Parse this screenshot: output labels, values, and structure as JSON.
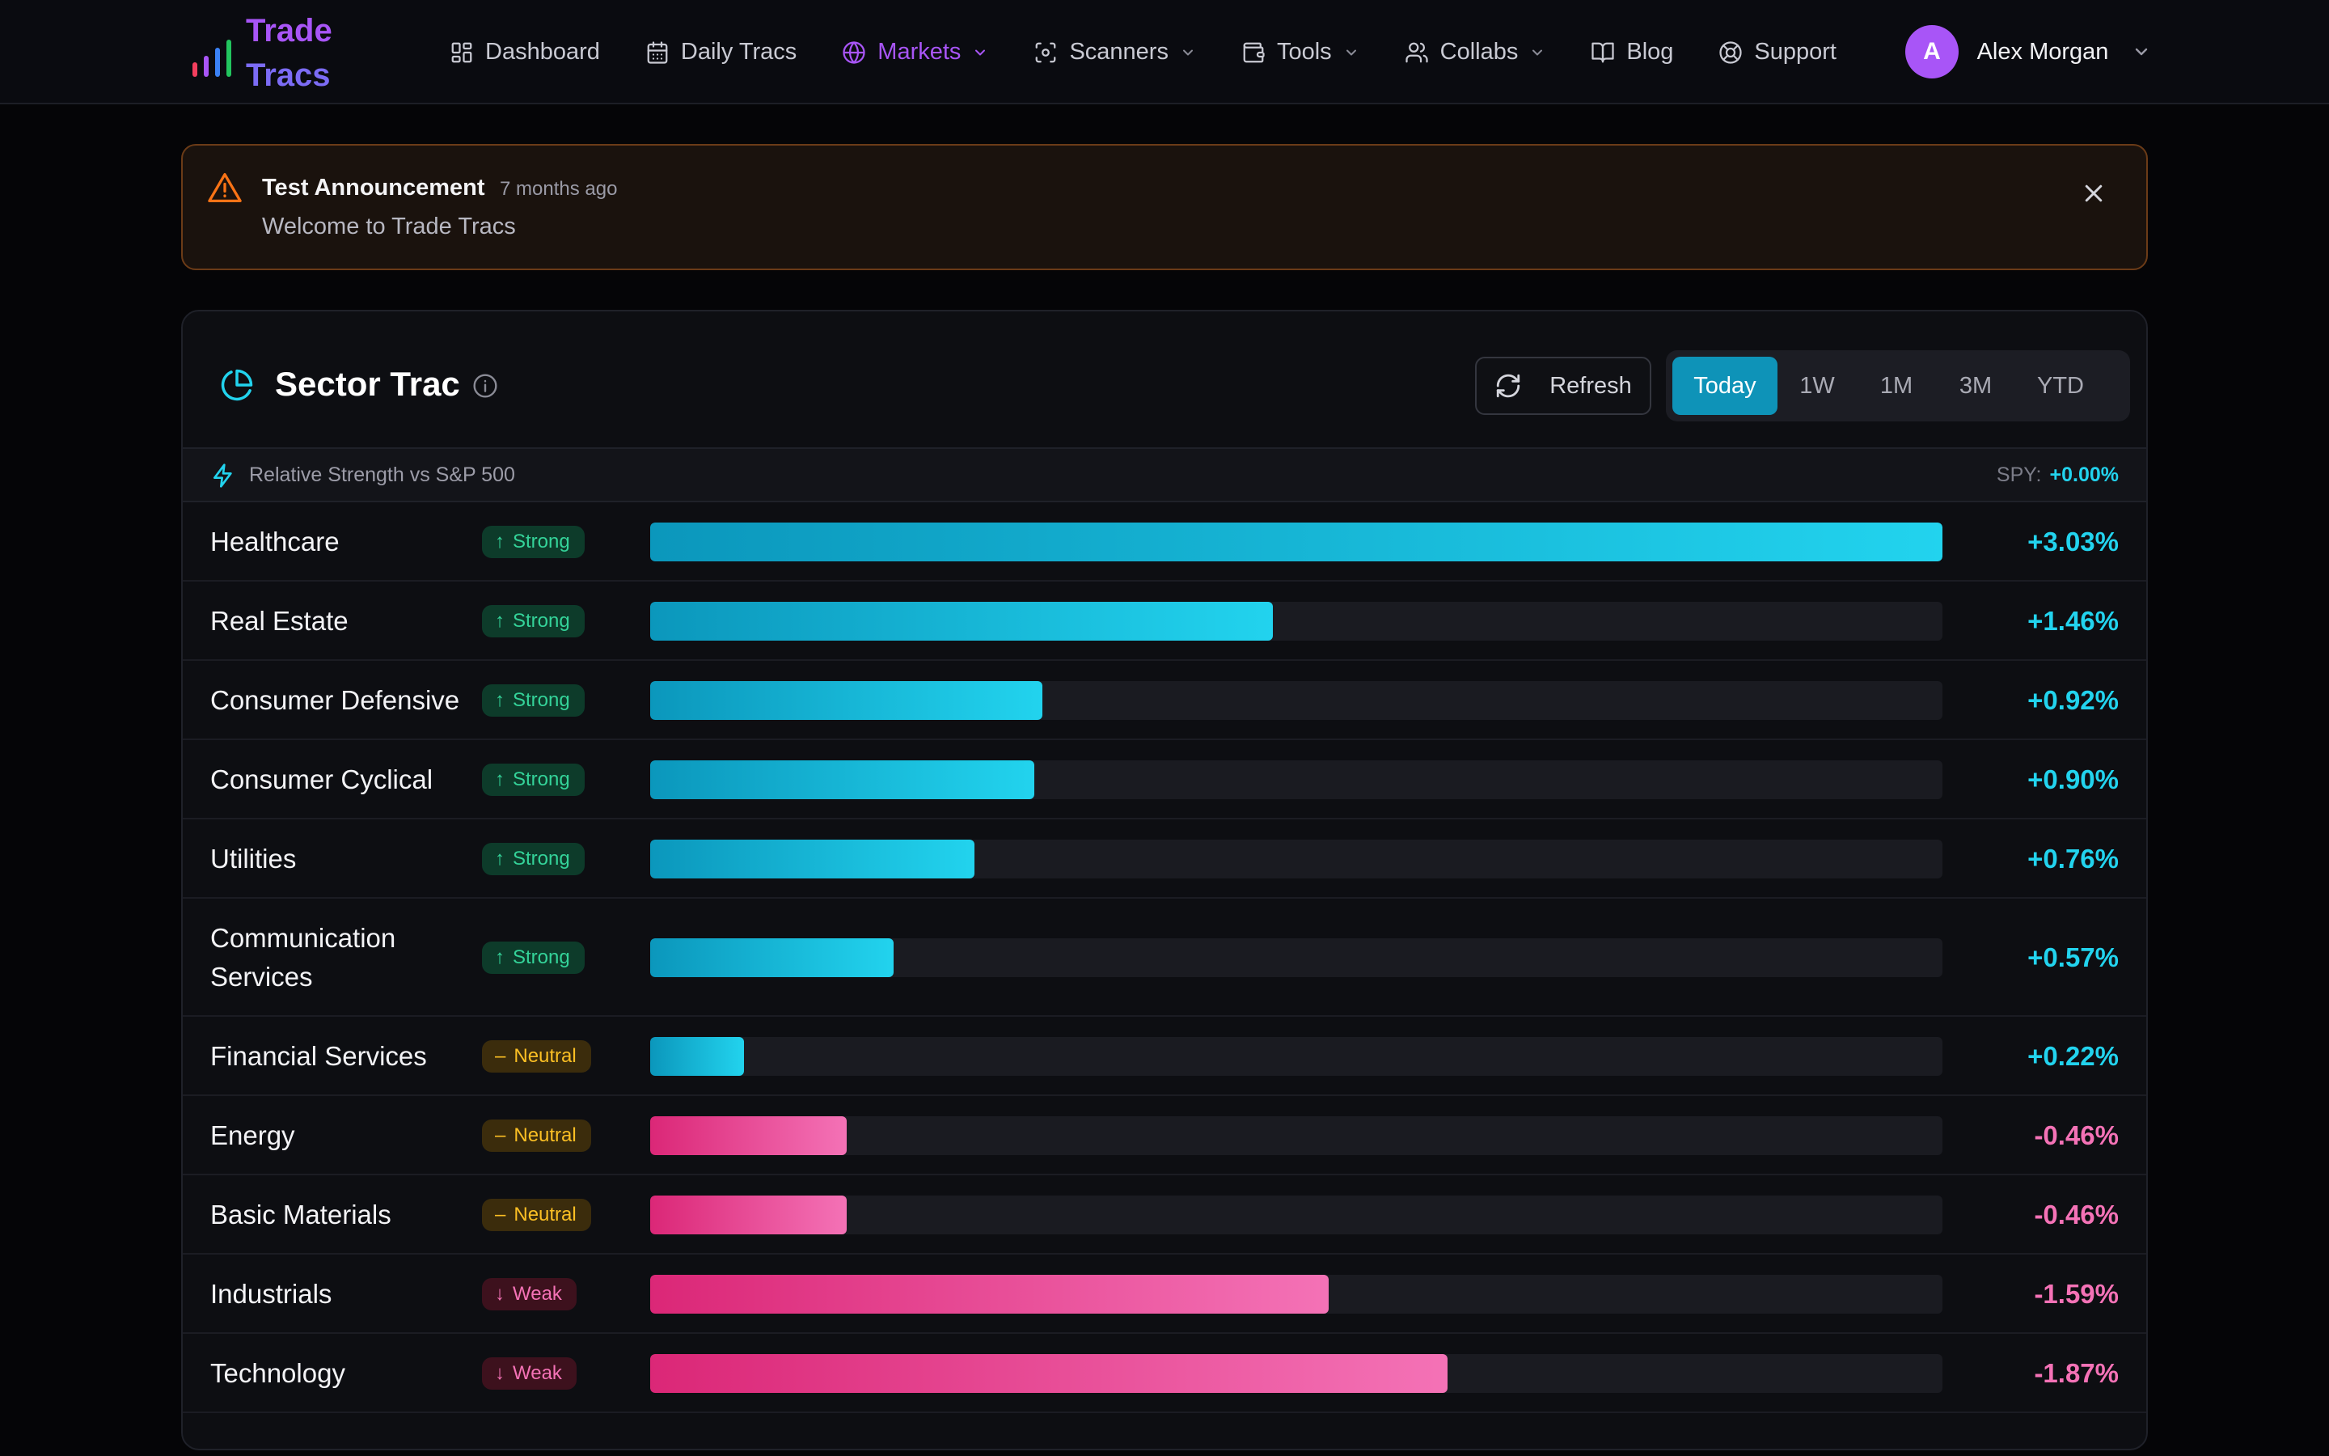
{
  "brand": {
    "line1": "Trade",
    "line2": "Tracs"
  },
  "nav": [
    {
      "label": "Dashboard",
      "icon": "dashboard-icon",
      "dropdown": false,
      "active": false
    },
    {
      "label": "Daily Tracs",
      "icon": "calendar-icon",
      "dropdown": false,
      "active": false
    },
    {
      "label": "Markets",
      "icon": "globe-icon",
      "dropdown": true,
      "active": true
    },
    {
      "label": "Scanners",
      "icon": "scan-icon",
      "dropdown": true,
      "active": false
    },
    {
      "label": "Tools",
      "icon": "wallet-icon",
      "dropdown": true,
      "active": false
    },
    {
      "label": "Collabs",
      "icon": "users-icon",
      "dropdown": true,
      "active": false
    },
    {
      "label": "Blog",
      "icon": "book-icon",
      "dropdown": false,
      "active": false
    },
    {
      "label": "Support",
      "icon": "lifebuoy-icon",
      "dropdown": false,
      "active": false
    }
  ],
  "user": {
    "initial": "A",
    "name": "Alex Morgan"
  },
  "announcement": {
    "title": "Test Announcement",
    "time_ago": "7 months ago",
    "message": "Welcome to Trade Tracs"
  },
  "panel": {
    "title": "Sector Trac",
    "refresh_label": "Refresh",
    "ranges": [
      "Today",
      "1W",
      "1M",
      "3M",
      "YTD"
    ],
    "active_range": "Today",
    "rs_label": "Relative Strength vs S&P 500",
    "spy_label": "SPY:",
    "spy_value": "+0.00%"
  },
  "sectors": [
    {
      "name": "Healthcare",
      "status": "Strong",
      "value": 3.03,
      "pct": "+3.03%"
    },
    {
      "name": "Real Estate",
      "status": "Strong",
      "value": 1.46,
      "pct": "+1.46%"
    },
    {
      "name": "Consumer Defensive",
      "status": "Strong",
      "value": 0.92,
      "pct": "+0.92%"
    },
    {
      "name": "Consumer Cyclical",
      "status": "Strong",
      "value": 0.9,
      "pct": "+0.90%"
    },
    {
      "name": "Utilities",
      "status": "Strong",
      "value": 0.76,
      "pct": "+0.76%"
    },
    {
      "name": "Communication Services",
      "status": "Strong",
      "value": 0.57,
      "pct": "+0.57%"
    },
    {
      "name": "Financial Services",
      "status": "Neutral",
      "value": 0.22,
      "pct": "+0.22%"
    },
    {
      "name": "Energy",
      "status": "Neutral",
      "value": -0.46,
      "pct": "-0.46%"
    },
    {
      "name": "Basic Materials",
      "status": "Neutral",
      "value": -0.46,
      "pct": "-0.46%"
    },
    {
      "name": "Industrials",
      "status": "Weak",
      "value": -1.59,
      "pct": "-1.59%"
    },
    {
      "name": "Technology",
      "status": "Weak",
      "value": -1.87,
      "pct": "-1.87%"
    }
  ],
  "colors": {
    "accent": "#a855f7",
    "positive": "#22d3ee",
    "negative": "#f472b6",
    "strong": "#34d399",
    "neutral": "#fbbf24",
    "active_range_bg": "#0e93b8"
  }
}
